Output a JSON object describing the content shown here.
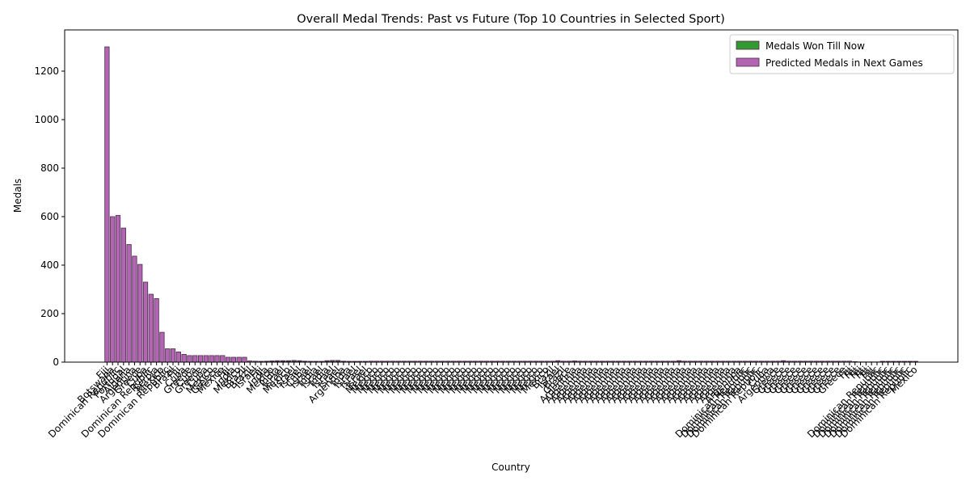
{
  "chart_data": {
    "type": "bar",
    "title": "Overall Medal Trends: Past vs Future (Top 10 Countries in Selected Sport)",
    "x_label": "Country",
    "y_label": "Medals",
    "ylim": [
      0,
      1370
    ],
    "yticks": [
      0,
      200,
      400,
      600,
      800,
      1000,
      1200
    ],
    "grid": false,
    "legend": "upper right",
    "categories": [
      "Fiji",
      "Botswana",
      "Dominican Republic",
      "Portugal",
      "Algeria",
      "Argentina",
      "Greece",
      "Cuba",
      "Dominican Republic",
      "Serbia",
      "Mexico",
      "Dominican Republic",
      "Brazil",
      "Fiji",
      "Cuba",
      "Greece",
      "Cuba",
      "Greece",
      "Cuba",
      "Mexico",
      "Greece",
      "Mexico",
      "Fiji",
      "India",
      "Mexico",
      "Brazil",
      "Brazil",
      "Israel",
      "Fiji",
      "India",
      "Mexico",
      "India",
      "Israel",
      "Mexico",
      "Israel",
      "Israel",
      "Cuba",
      "Israel",
      "India",
      "Israel",
      "India",
      "Israel",
      "Israel",
      "Argentina",
      "India",
      "Israel",
      "Israel",
      "Israel",
      "Mexico",
      "Mexico",
      "Mexico",
      "Mexico",
      "Mexico",
      "Mexico",
      "Mexico",
      "Mexico",
      "Mexico",
      "Mexico",
      "Mexico",
      "Mexico",
      "Mexico",
      "Mexico",
      "Mexico",
      "Mexico",
      "Mexico",
      "Mexico",
      "Mexico",
      "Mexico",
      "Mexico",
      "Mexico",
      "Mexico",
      "Mexico",
      "Mexico",
      "Mexico",
      "Mexico",
      "Mexico",
      "Mexico",
      "Mexico",
      "Mexico",
      "Mexico",
      "Mexico",
      "Brazil",
      "Israel",
      "Brazil",
      "Greece",
      "Argentina",
      "Argentina",
      "Argentina",
      "Argentina",
      "Argentina",
      "Argentina",
      "Argentina",
      "Argentina",
      "Argentina",
      "Argentina",
      "Argentina",
      "Argentina",
      "Argentina",
      "Argentina",
      "Argentina",
      "Argentina",
      "Argentina",
      "Argentina",
      "Argentina",
      "Argentina",
      "Argentina",
      "Argentina",
      "Argentina",
      "Argentina",
      "Argentina",
      "Argentina",
      "Argentina",
      "Argentina",
      "Argentina",
      "Argentina",
      "Argentina",
      "Dominican Republic",
      "Dominican Republic",
      "Dominican Republic",
      "Dominican Republic",
      "Cuba",
      "Argentina",
      "Greece",
      "Greece",
      "Greece",
      "Greece",
      "Greece",
      "Greece",
      "Greece",
      "Greece",
      "Greece",
      "Greece",
      "Greece",
      "Greece",
      "Greece",
      "Fiji",
      "Fiji",
      "Fiji",
      "Fiji",
      "Fiji",
      "Dominican Republic",
      "Dominican Republic",
      "Dominican Republic",
      "Dominican Republic",
      "Dominican Republic",
      "Dominican Republic",
      "Dominican Republic",
      "Mexico"
    ],
    "series": [
      {
        "name": "Medals Won Till Now",
        "color": "#339933",
        "values": [
          0,
          0,
          2,
          0,
          3,
          0,
          2,
          0,
          4,
          5,
          3,
          2,
          2,
          3,
          2,
          2,
          2,
          2,
          2,
          3,
          2,
          3,
          2,
          3,
          3,
          2,
          3,
          2,
          3,
          4,
          5,
          6,
          6,
          6,
          7,
          6,
          4,
          3,
          3,
          3,
          6,
          7,
          7,
          4,
          3,
          3,
          3,
          3,
          3,
          3,
          3,
          3,
          3,
          3,
          3,
          3,
          3,
          3,
          3,
          3,
          3,
          3,
          3,
          3,
          3,
          3,
          3,
          3,
          3,
          3,
          3,
          3,
          3,
          3,
          3,
          3,
          3,
          3,
          3,
          3,
          3,
          3,
          6,
          3,
          3,
          5,
          3,
          3,
          3,
          3,
          3,
          3,
          3,
          3,
          3,
          3,
          3,
          3,
          3,
          3,
          3,
          3,
          3,
          3,
          6,
          3,
          3,
          3,
          3,
          3,
          3,
          3,
          3,
          3,
          3,
          3,
          3,
          3,
          3,
          3,
          3,
          3,
          3,
          6,
          3,
          3,
          3,
          3,
          3,
          3,
          3,
          3,
          3,
          3,
          3,
          3,
          2,
          0,
          0,
          0,
          0,
          3,
          3,
          3,
          3,
          3,
          3,
          3
        ]
      },
      {
        "name": "Predicted Medals in Next Games",
        "color": "#b266b2",
        "values": [
          1300,
          600,
          605,
          553,
          485,
          437,
          403,
          330,
          280,
          262,
          123,
          55,
          55,
          42,
          32,
          27,
          27,
          27,
          27,
          27,
          27,
          27,
          20,
          20,
          20,
          20,
          5,
          4,
          3,
          3,
          3,
          3,
          3,
          3,
          3,
          3,
          3,
          3,
          3,
          3,
          3,
          3,
          3,
          3,
          3,
          3,
          3,
          3,
          4,
          4,
          4,
          4,
          4,
          4,
          4,
          4,
          4,
          4,
          4,
          4,
          4,
          4,
          4,
          4,
          4,
          4,
          4,
          4,
          4,
          4,
          4,
          4,
          4,
          4,
          4,
          4,
          4,
          4,
          4,
          4,
          4,
          4,
          4,
          4,
          4,
          4,
          4,
          4,
          4,
          4,
          4,
          4,
          4,
          4,
          4,
          4,
          4,
          4,
          4,
          4,
          4,
          4,
          4,
          4,
          4,
          4,
          4,
          4,
          4,
          4,
          4,
          4,
          4,
          4,
          4,
          4,
          4,
          4,
          4,
          4,
          4,
          4,
          4,
          4,
          4,
          4,
          4,
          4,
          4,
          4,
          4,
          4,
          4,
          4,
          4,
          4,
          1,
          1,
          1,
          1,
          1,
          3,
          3,
          3,
          3,
          3,
          3,
          3
        ]
      }
    ]
  }
}
